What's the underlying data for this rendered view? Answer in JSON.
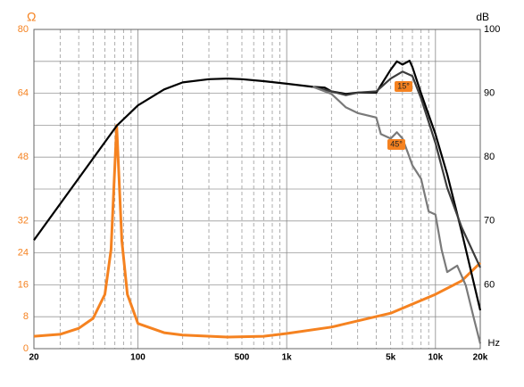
{
  "chart_data": {
    "type": "line",
    "y_axis_label": "Ω",
    "y2_axis_label": "dB",
    "x_axis_label": "Hz",
    "xscale": "log",
    "xlim": [
      20,
      20000
    ],
    "xticks": [
      20,
      100,
      500,
      {
        "value": 1000,
        "label": "1k"
      },
      {
        "value": 5000,
        "label": "5k"
      },
      {
        "value": 10000,
        "label": "10k"
      },
      {
        "value": 20000,
        "label": "20k"
      }
    ],
    "xgrid": [
      20,
      30,
      40,
      50,
      60,
      70,
      80,
      90,
      100,
      200,
      300,
      400,
      500,
      600,
      700,
      800,
      900,
      1000,
      2000,
      3000,
      4000,
      5000,
      6000,
      7000,
      8000,
      9000,
      10000,
      20000
    ],
    "ylim": [
      0,
      80
    ],
    "yticks": [
      0,
      8,
      16,
      24,
      32,
      48,
      64,
      80
    ],
    "ygrid": [
      0,
      8,
      16,
      24,
      32,
      40,
      48,
      56,
      64,
      72,
      80
    ],
    "y2lim": [
      50,
      100
    ],
    "y2ticks": [
      60,
      70,
      80,
      90,
      100
    ],
    "grid": true,
    "series": [
      {
        "color": "#f58220",
        "x": [
          20,
          30,
          40,
          50,
          60,
          66,
          72,
          78,
          85,
          100,
          150,
          200,
          400,
          700,
          1000,
          2000,
          5000,
          10000,
          15000,
          20000
        ],
        "values": [
          3.1,
          3.6,
          5.1,
          7.6,
          13.6,
          24.8,
          55.9,
          27,
          13.6,
          6.3,
          4,
          3.4,
          2.9,
          3.1,
          3.8,
          5.4,
          8.9,
          13.6,
          17,
          21.5
        ]
      },
      {
        "color": "#000000",
        "axis": "y2",
        "x": [
          20,
          72,
          100,
          150,
          200,
          300,
          400,
          500,
          700,
          1000,
          1500,
          1800,
          2000,
          2500,
          3000,
          4000,
          5000,
          5500,
          6000,
          6700,
          7000,
          8000,
          10000,
          12000,
          15000,
          20000
        ],
        "values": [
          67,
          84.9,
          88.1,
          90.6,
          91.7,
          92.2,
          92.3,
          92.2,
          91.9,
          91.5,
          91,
          90.9,
          90.3,
          89.9,
          90.1,
          90.1,
          93.7,
          95,
          94.5,
          95.1,
          94.1,
          90,
          83.6,
          77.3,
          68.3,
          56
        ]
      },
      {
        "name": "15°",
        "color": "#3c3c3c",
        "axis": "y2",
        "x": [
          1500,
          2000,
          2500,
          3000,
          4000,
          5000,
          6000,
          7000,
          8000,
          10000,
          12000,
          15000,
          20000
        ],
        "values": [
          91,
          90.3,
          89.7,
          90.1,
          90.3,
          92.3,
          93.4,
          92.7,
          89.2,
          82.2,
          75.2,
          69,
          62.7
        ]
      },
      {
        "name": "45°",
        "color": "#7a7a7a",
        "axis": "y2",
        "x": [
          1500,
          2000,
          2500,
          3000,
          4000,
          4300,
          5000,
          5500,
          6000,
          6500,
          7000,
          8000,
          9000,
          10000,
          11000,
          12000,
          14000,
          16000,
          18000,
          20000
        ],
        "values": [
          91,
          89.9,
          87.8,
          86.9,
          86.2,
          83.6,
          82.9,
          83.9,
          82.9,
          80.8,
          78.7,
          76.6,
          71.5,
          71,
          65.5,
          62,
          63,
          59.9,
          55,
          50.8
        ]
      }
    ]
  }
}
